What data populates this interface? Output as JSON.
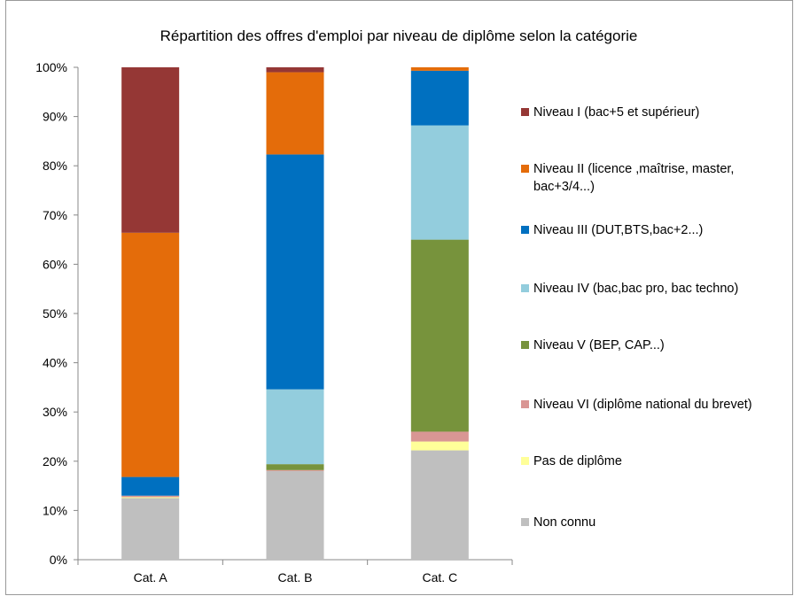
{
  "chart_data": {
    "type": "stacked_bar",
    "title": "Répartition des offres d'emploi par niveau de diplôme selon la catégorie",
    "categories": [
      "Cat. A",
      "Cat. B",
      "Cat. C"
    ],
    "series": [
      {
        "name": "Niveau I (bac+5 et supérieur)",
        "color": "#953735",
        "values": [
          33.6,
          1.0,
          0
        ]
      },
      {
        "name": "Niveau II (licence ,maîtrise, master, bac+3/4...)",
        "color": "#e46c0a",
        "values": [
          49.6,
          16.7,
          0.7
        ]
      },
      {
        "name": "Niveau III (DUT,BTS,bac+2...)",
        "color": "#0070c0",
        "values": [
          3.8,
          47.7,
          11.1
        ]
      },
      {
        "name": "Niveau IV (bac,bac pro, bac techno)",
        "color": "#93cddd",
        "values": [
          0,
          15.2,
          23.2
        ]
      },
      {
        "name": "Niveau V (BEP, CAP...)",
        "color": "#77933c",
        "values": [
          0,
          1.2,
          39.0
        ]
      },
      {
        "name": "Niveau VI (diplôme national du brevet)",
        "color": "#d99694",
        "values": [
          0.3,
          0.2,
          2.0
        ]
      },
      {
        "name": "Pas de diplôme",
        "color": "#ffff99",
        "values": [
          0.2,
          0,
          1.8
        ]
      },
      {
        "name": "Non connu",
        "color": "#bfbfbf",
        "values": [
          12.5,
          18.0,
          22.2
        ]
      }
    ],
    "ylim": [
      0,
      100
    ],
    "yticks": [
      {
        "value": 0,
        "label": "0%"
      },
      {
        "value": 10,
        "label": "10%"
      },
      {
        "value": 20,
        "label": "20%"
      },
      {
        "value": 30,
        "label": "30%"
      },
      {
        "value": 40,
        "label": "40%"
      },
      {
        "value": 50,
        "label": "50%"
      },
      {
        "value": 60,
        "label": "60%"
      },
      {
        "value": 70,
        "label": "70%"
      },
      {
        "value": 80,
        "label": "80%"
      },
      {
        "value": 90,
        "label": "90%"
      },
      {
        "value": 100,
        "label": "100%"
      }
    ],
    "legend": "right"
  }
}
